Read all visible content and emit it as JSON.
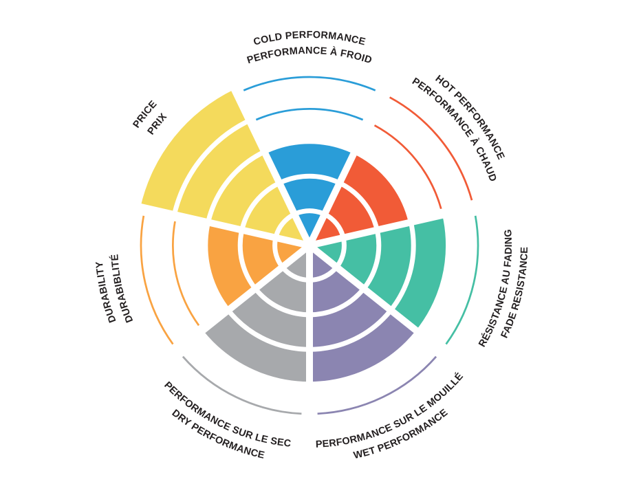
{
  "page": {
    "background_color": "#FFFFFF"
  },
  "chart_data": {
    "type": "polar-sector-wheel",
    "title": "",
    "levels": 5,
    "text_color": "#231F20",
    "grid": {
      "ring_divider_color": "#FFFFFF",
      "sector_gap_color": "#FFFFFF",
      "grid_on": true
    },
    "legend_position": "labels-around-rim",
    "categories": [
      {
        "id": "cold-performance",
        "label_en": "COLD PERFORMANCE",
        "label_fr": "PERFORMANCE À FROID",
        "value": 3,
        "max": 5,
        "color": "#2A9DD8",
        "angle_deg": -90,
        "label_style": "top"
      },
      {
        "id": "hot-performance",
        "label_en": "HOT PERFORMANCE",
        "label_fr": "PERFORMANCE À CHAUD",
        "value": 3,
        "max": 5,
        "color": "#F15B37",
        "angle_deg": -38.57,
        "label_style": "top"
      },
      {
        "id": "fade-resistance",
        "label_en": "FADE RESISTANCE",
        "label_fr": "RÉSISTANCE AU FADING",
        "value": 4,
        "max": 5,
        "color": "#45BFA4",
        "angle_deg": 12.86,
        "label_style": "bottom"
      },
      {
        "id": "wet-performance",
        "label_en": "WET PERFORMANCE",
        "label_fr": "PERFORMANCE SUR LE MOUILLÉ",
        "value": 4,
        "max": 5,
        "color": "#8B85B1",
        "angle_deg": 64.29,
        "label_style": "bottom"
      },
      {
        "id": "dry-performance",
        "label_en": "DRY PERFORMANCE",
        "label_fr": "PERFORMANCE SUR LE SEC",
        "value": 4,
        "max": 5,
        "color": "#A7A9AC",
        "angle_deg": 115.71,
        "label_style": "bottom"
      },
      {
        "id": "durability",
        "label_en": "DURABILITY",
        "label_fr": "DURABIBLITÉ",
        "value": 3,
        "max": 5,
        "color": "#F9A342",
        "angle_deg": 167.14,
        "label_style": "top"
      },
      {
        "id": "price",
        "label_en": "PRICE",
        "label_fr": "PRIX",
        "value": 5,
        "max": 5,
        "color": "#F4DA5C",
        "angle_deg": -141.43,
        "label_style": "top"
      }
    ]
  }
}
